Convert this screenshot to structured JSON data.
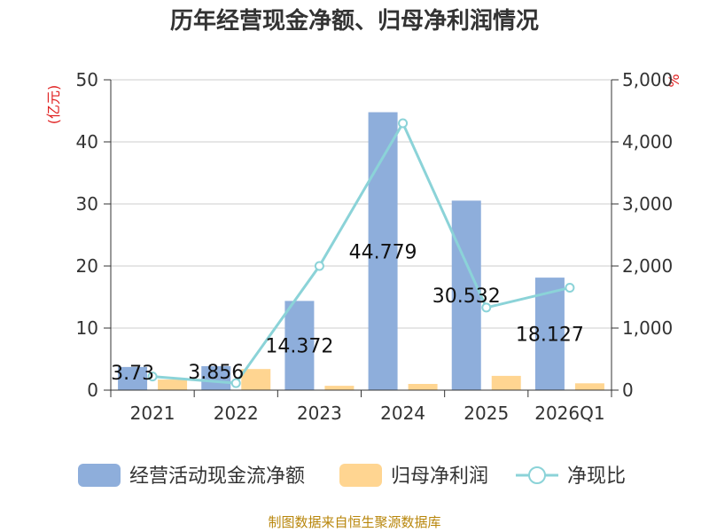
{
  "chart_data": {
    "type": "bar",
    "title": "历年经营现金净额、归母净利润情况",
    "categories": [
      "2021",
      "2022",
      "2023",
      "2024",
      "2025",
      "2026Q1"
    ],
    "series": [
      {
        "name": "经营活动现金流净额",
        "type": "bar",
        "axis": "left",
        "color": "#8eaedb",
        "values": [
          3.73,
          3.856,
          14.372,
          44.779,
          30.532,
          18.127
        ]
      },
      {
        "name": "归母净利润",
        "type": "bar",
        "axis": "left",
        "color": "#ffd591",
        "values": [
          1.7,
          3.4,
          0.7,
          1.0,
          2.3,
          1.1
        ]
      },
      {
        "name": "净现比",
        "type": "line",
        "axis": "right",
        "color": "#8bd3d8",
        "values": [
          220,
          113,
          2000,
          4300,
          1330,
          1650
        ]
      }
    ],
    "data_labels": [
      "3.73",
      "3.856",
      "14.372",
      "44.779",
      "30.532",
      "18.127"
    ],
    "y_left": {
      "label": "(亿元)",
      "min": 0,
      "max": 50,
      "ticks": [
        "0",
        "10",
        "20",
        "30",
        "40",
        "50"
      ]
    },
    "y_right": {
      "label": "%",
      "min": 0,
      "max": 5000,
      "ticks": [
        "0",
        "1,000",
        "2,000",
        "3,000",
        "4,000",
        "5,000"
      ]
    },
    "grid": true,
    "legend_position": "bottom"
  },
  "source": "制图数据来自恒生聚源数据库"
}
